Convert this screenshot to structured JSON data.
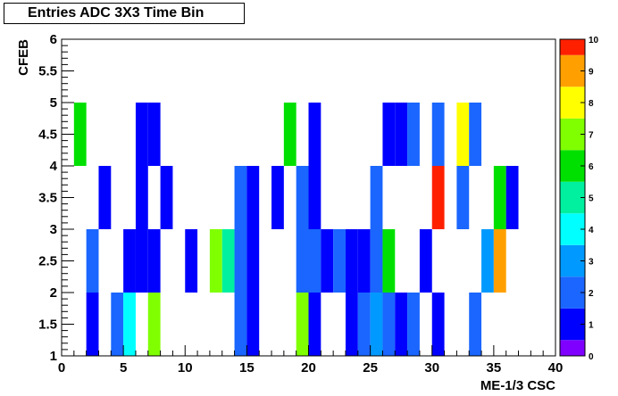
{
  "chart_data": {
    "type": "heatmap",
    "title": "Entries ADC 3X3 Time Bin",
    "xlabel": "ME-1/3 CSC",
    "ylabel": "CFEB",
    "xlim": [
      0,
      40
    ],
    "ylim": [
      1,
      6
    ],
    "x_ticks": [
      "0",
      "5",
      "10",
      "15",
      "20",
      "25",
      "30",
      "35",
      "40"
    ],
    "y_ticks": [
      "1",
      "1.5",
      "2",
      "2.5",
      "3",
      "3.5",
      "4",
      "4.5",
      "5",
      "5.5",
      "6"
    ],
    "z_range": [
      0,
      10
    ],
    "colorbar_ticks": [
      "0",
      "1",
      "2",
      "3",
      "4",
      "5",
      "6",
      "7",
      "8",
      "9",
      "10"
    ],
    "colorbar_colors": [
      "#7f00ff",
      "#0000ff",
      "#1a66ff",
      "#0099ff",
      "#00ffff",
      "#00f0a0",
      "#00e000",
      "#80ff00",
      "#ffff00",
      "#ffa000",
      "#ff2000"
    ],
    "cells": [
      {
        "x": 2,
        "y": 1,
        "value": 1
      },
      {
        "x": 4,
        "y": 1,
        "value": 2
      },
      {
        "x": 5,
        "y": 1,
        "value": 4
      },
      {
        "x": 7,
        "y": 1,
        "value": 7
      },
      {
        "x": 14,
        "y": 1,
        "value": 2
      },
      {
        "x": 15,
        "y": 1,
        "value": 1
      },
      {
        "x": 19,
        "y": 1,
        "value": 7
      },
      {
        "x": 20,
        "y": 1,
        "value": 1
      },
      {
        "x": 23,
        "y": 1,
        "value": 1
      },
      {
        "x": 24,
        "y": 1,
        "value": 2
      },
      {
        "x": 25,
        "y": 1,
        "value": 3
      },
      {
        "x": 26,
        "y": 1,
        "value": 2
      },
      {
        "x": 27,
        "y": 1,
        "value": 1
      },
      {
        "x": 28,
        "y": 1,
        "value": 2
      },
      {
        "x": 30,
        "y": 1,
        "value": 1
      },
      {
        "x": 33,
        "y": 1,
        "value": 2
      },
      {
        "x": 2,
        "y": 2,
        "value": 2
      },
      {
        "x": 5,
        "y": 2,
        "value": 1
      },
      {
        "x": 6,
        "y": 2,
        "value": 1
      },
      {
        "x": 7,
        "y": 2,
        "value": 1
      },
      {
        "x": 10,
        "y": 2,
        "value": 1
      },
      {
        "x": 12,
        "y": 2,
        "value": 7
      },
      {
        "x": 13,
        "y": 2,
        "value": 5
      },
      {
        "x": 14,
        "y": 2,
        "value": 2
      },
      {
        "x": 15,
        "y": 2,
        "value": 1
      },
      {
        "x": 19,
        "y": 2,
        "value": 2
      },
      {
        "x": 20,
        "y": 2,
        "value": 2
      },
      {
        "x": 21,
        "y": 2,
        "value": 1
      },
      {
        "x": 22,
        "y": 2,
        "value": 2
      },
      {
        "x": 23,
        "y": 2,
        "value": 1
      },
      {
        "x": 24,
        "y": 2,
        "value": 1
      },
      {
        "x": 25,
        "y": 2,
        "value": 2
      },
      {
        "x": 26,
        "y": 2,
        "value": 6
      },
      {
        "x": 29,
        "y": 2,
        "value": 1
      },
      {
        "x": 34,
        "y": 2,
        "value": 3
      },
      {
        "x": 35,
        "y": 2,
        "value": 9
      },
      {
        "x": 3,
        "y": 3,
        "value": 1
      },
      {
        "x": 6,
        "y": 3,
        "value": 1
      },
      {
        "x": 8,
        "y": 3,
        "value": 1
      },
      {
        "x": 14,
        "y": 3,
        "value": 2
      },
      {
        "x": 15,
        "y": 3,
        "value": 1
      },
      {
        "x": 17,
        "y": 3,
        "value": 1
      },
      {
        "x": 19,
        "y": 3,
        "value": 2
      },
      {
        "x": 20,
        "y": 3,
        "value": 1
      },
      {
        "x": 25,
        "y": 3,
        "value": 2
      },
      {
        "x": 30,
        "y": 3,
        "value": 10
      },
      {
        "x": 32,
        "y": 3,
        "value": 2
      },
      {
        "x": 35,
        "y": 3,
        "value": 6
      },
      {
        "x": 36,
        "y": 3,
        "value": 1
      },
      {
        "x": 1,
        "y": 4,
        "value": 6
      },
      {
        "x": 6,
        "y": 4,
        "value": 1
      },
      {
        "x": 7,
        "y": 4,
        "value": 1
      },
      {
        "x": 18,
        "y": 4,
        "value": 6
      },
      {
        "x": 20,
        "y": 4,
        "value": 1
      },
      {
        "x": 26,
        "y": 4,
        "value": 1
      },
      {
        "x": 27,
        "y": 4,
        "value": 1
      },
      {
        "x": 28,
        "y": 4,
        "value": 2
      },
      {
        "x": 30,
        "y": 4,
        "value": 2
      },
      {
        "x": 32,
        "y": 4,
        "value": 8
      },
      {
        "x": 33,
        "y": 4,
        "value": 2
      }
    ]
  }
}
